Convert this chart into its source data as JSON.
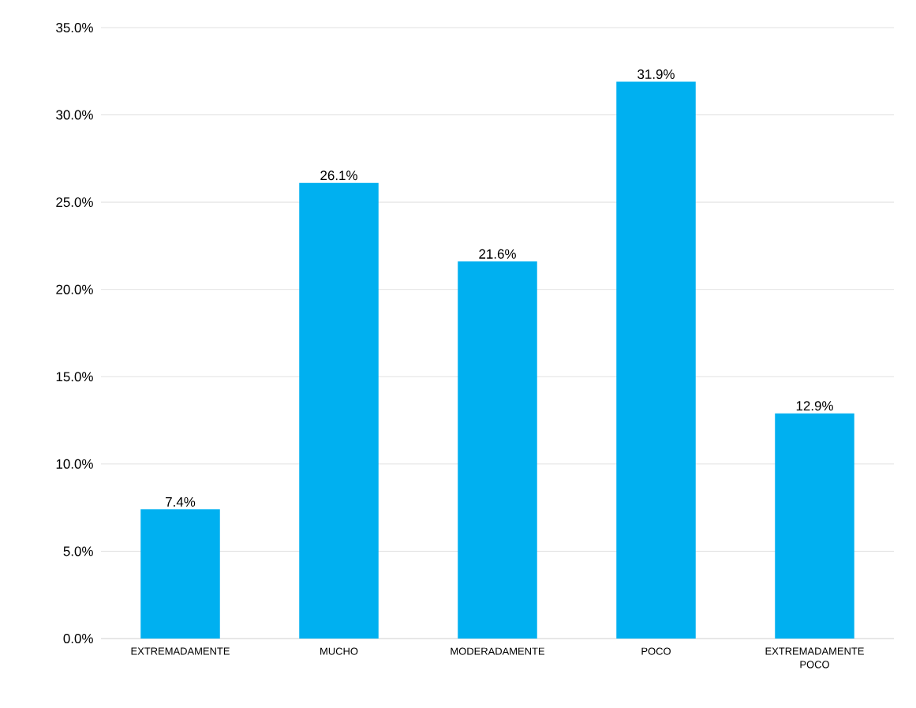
{
  "chart_data": {
    "type": "bar",
    "categories": [
      "EXTREMADAMENTE",
      "MUCHO",
      "MODERADAMENTE",
      "POCO",
      "EXTREMADAMENTE POCO"
    ],
    "values": [
      7.4,
      26.1,
      21.6,
      31.9,
      12.9
    ],
    "value_labels": [
      "7.4%",
      "26.1%",
      "21.6%",
      "31.9%",
      "12.9%"
    ],
    "color": "#00b0f0",
    "ylim": [
      0,
      35
    ],
    "yticks": [
      {
        "value": 0,
        "label": "0.0%"
      },
      {
        "value": 5,
        "label": "5.0%"
      },
      {
        "value": 10,
        "label": "10.0%"
      },
      {
        "value": 15,
        "label": "15.0%"
      },
      {
        "value": 20,
        "label": "20.0%"
      },
      {
        "value": 25,
        "label": "25.0%"
      },
      {
        "value": 30,
        "label": "30.0%"
      },
      {
        "value": 35,
        "label": "35.0%"
      }
    ],
    "grid": "y"
  }
}
